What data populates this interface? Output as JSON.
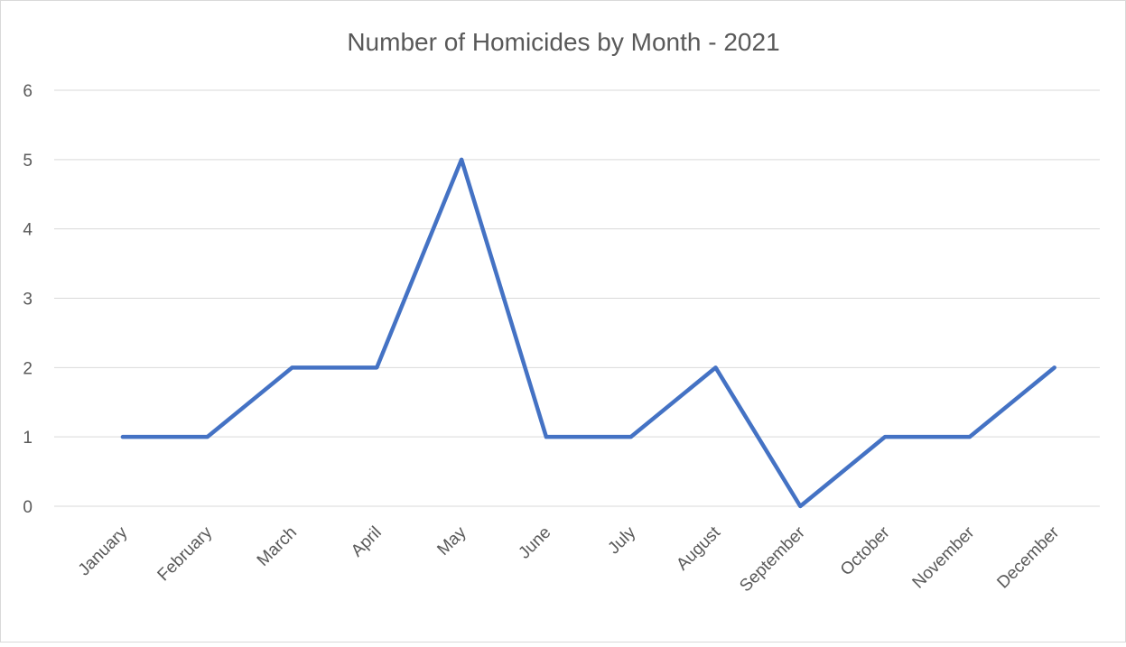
{
  "chart_data": {
    "type": "line",
    "title": "Number of Homicides by Month - 2021",
    "categories": [
      "January",
      "February",
      "March",
      "April",
      "May",
      "June",
      "July",
      "August",
      "September",
      "October",
      "November",
      "December"
    ],
    "series": [
      {
        "name": null,
        "color": "#4472c4",
        "values": [
          1,
          1,
          2,
          2,
          5,
          1,
          1,
          2,
          0,
          1,
          1,
          2
        ]
      }
    ],
    "ylim": [
      0,
      6
    ],
    "yticks": [
      0,
      1,
      2,
      3,
      4,
      5,
      6
    ],
    "grid": true
  }
}
